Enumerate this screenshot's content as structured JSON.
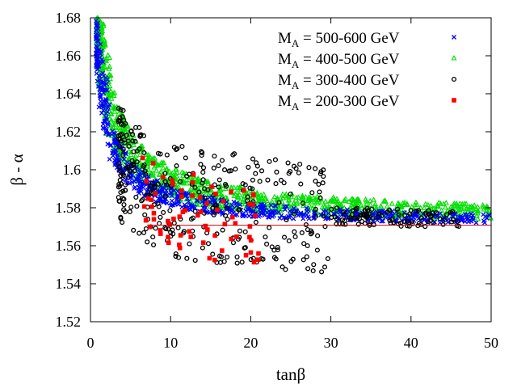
{
  "chart_data": {
    "type": "scatter",
    "title": "",
    "xlabel": "tanβ",
    "ylabel": "β - α",
    "xlim": [
      0,
      50
    ],
    "ylim": [
      1.52,
      1.68
    ],
    "xticks": [
      "0",
      "10",
      "20",
      "30",
      "40",
      "50"
    ],
    "yticks": [
      "1.52",
      "1.54",
      "1.56",
      "1.58",
      "1.6",
      "1.62",
      "1.64",
      "1.66",
      "1.68"
    ],
    "grid": false,
    "legend_position": "top-right",
    "reference_line": {
      "y": 1.5708,
      "color": "#cc0000"
    },
    "series": [
      {
        "name": "M_A = 500-600 GeV",
        "legend_prefix": "M",
        "legend_sub": "A",
        "legend_rest": " = 500-600 GeV",
        "color": "#0000ff",
        "marker": "x",
        "x_range": [
          0.7,
          50
        ],
        "spread_min": -0.004,
        "spread_max": 0.006,
        "count": 650
      },
      {
        "name": "M_A = 400-500 GeV",
        "legend_prefix": "M",
        "legend_sub": "A",
        "legend_rest": " = 400-500 GeV",
        "color": "#00e000",
        "marker": "triangle",
        "x_range": [
          0.8,
          50
        ],
        "spread_min": 0.0,
        "spread_max": 0.016,
        "count": 1100
      },
      {
        "name": "M_A = 300-400 GeV",
        "legend_prefix": "M",
        "legend_sub": "A",
        "legend_rest": " = 300-400 GeV",
        "color": "#000000",
        "marker": "circle",
        "x_range": [
          3.5,
          46
        ],
        "spread_min": -0.03,
        "spread_max": 0.03,
        "count": 420
      },
      {
        "name": "M_A = 200-300 GeV",
        "legend_prefix": "M",
        "legend_sub": "A",
        "legend_rest": " = 200-300 GeV",
        "color": "#ff0000",
        "marker": "square",
        "x_range": [
          6.5,
          21
        ],
        "spread_min": -0.028,
        "spread_max": 0.016,
        "count": 70
      }
    ],
    "curve_model": "y = 1.5708 + 0.155/(x+1) + spread"
  }
}
